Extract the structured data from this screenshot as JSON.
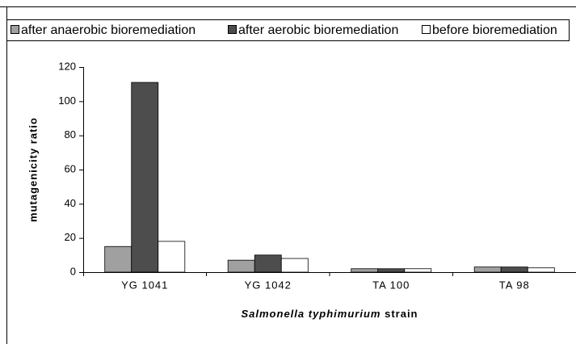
{
  "chart_data": {
    "type": "bar",
    "ylabel": "mutagenicity ratio",
    "xlabel_parts": [
      "Salmonella typhimurium",
      "strain"
    ],
    "categories": [
      "YG 1041",
      "YG 1042",
      "TA 100",
      "TA 98"
    ],
    "series": [
      {
        "name": "after anaerobic bioremediation",
        "color": "#a0a0a0",
        "values": [
          15,
          7,
          2,
          3
        ]
      },
      {
        "name": "after aerobic bioremediation",
        "color": "#4d4d4d",
        "values": [
          111,
          10,
          2,
          3
        ]
      },
      {
        "name": "before bioremediation",
        "color": "#ffffff",
        "values": [
          18,
          8,
          2,
          2.5
        ]
      }
    ],
    "ylim": [
      0,
      120
    ],
    "yticks": [
      0,
      20,
      40,
      60,
      80,
      100,
      120
    ],
    "grid": false,
    "legend": "top"
  }
}
